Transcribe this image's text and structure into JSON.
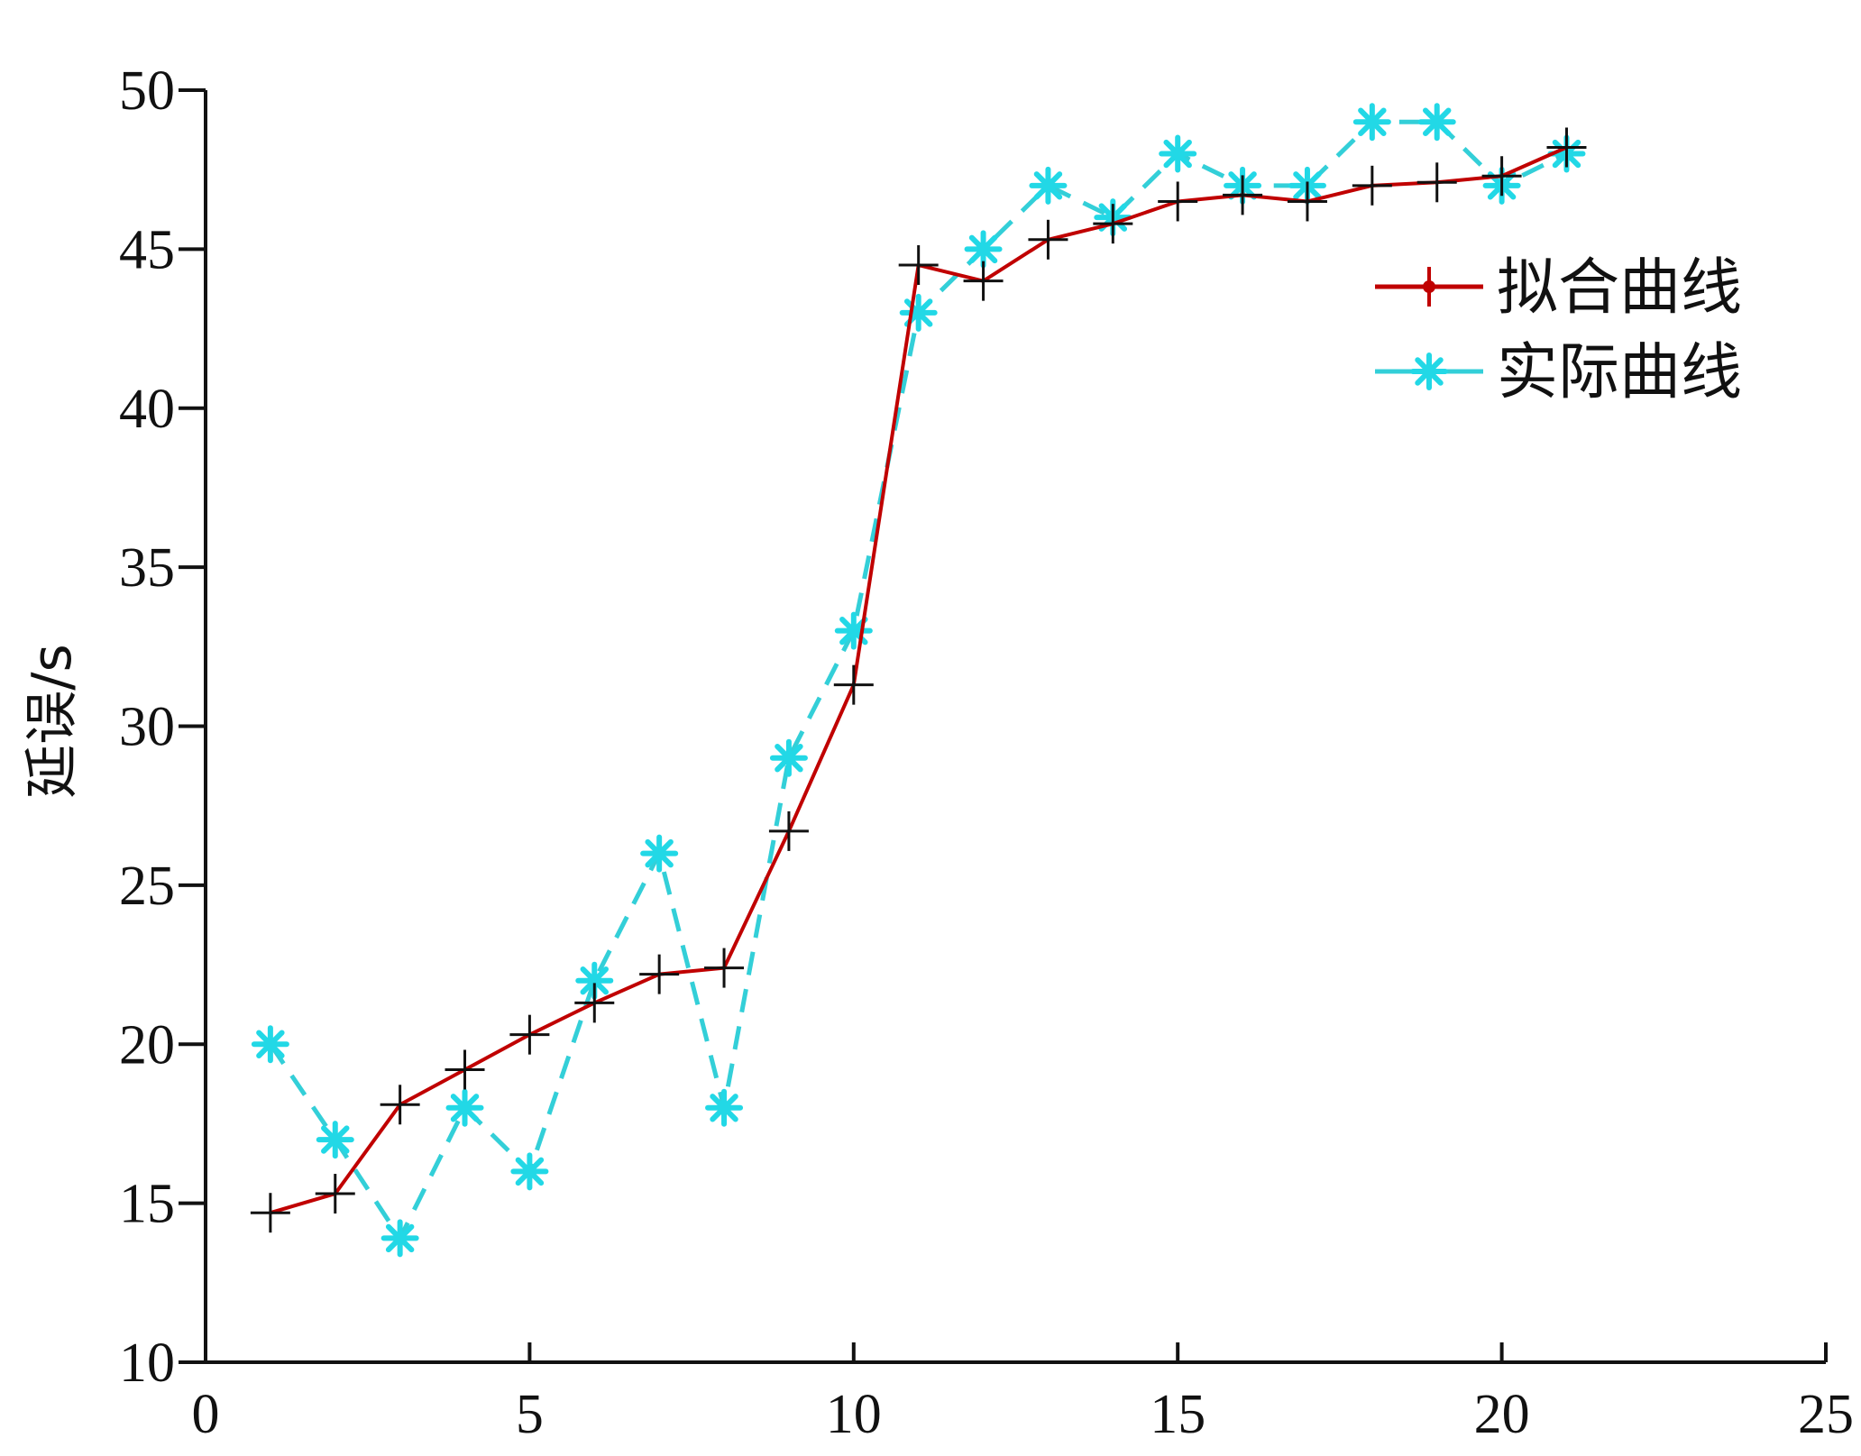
{
  "chart_data": {
    "type": "line",
    "ylabel": "延误/s",
    "xlim": [
      0,
      25
    ],
    "ylim": [
      10,
      50
    ],
    "xticks": [
      0,
      5,
      10,
      15,
      20,
      25
    ],
    "yticks": [
      10,
      15,
      20,
      25,
      30,
      35,
      40,
      45,
      50
    ],
    "x": [
      1,
      2,
      3,
      4,
      5,
      6,
      7,
      8,
      9,
      10,
      11,
      12,
      13,
      14,
      15,
      16,
      17,
      18,
      19,
      20,
      21
    ],
    "grid": false,
    "legend_position": "top-right",
    "series": [
      {
        "name": "拟合曲线",
        "color": "#c00000",
        "marker": "plus",
        "marker_color": "#111111",
        "line_style": "solid",
        "values": [
          14.7,
          15.3,
          18.1,
          19.2,
          20.3,
          21.3,
          22.2,
          22.4,
          26.7,
          31.3,
          44.5,
          44.0,
          45.3,
          45.8,
          46.5,
          46.7,
          46.5,
          47.0,
          47.1,
          47.3,
          48.2
        ]
      },
      {
        "name": "实际曲线",
        "color": "#33cfd8",
        "marker": "asterisk",
        "marker_color": "#22d8e6",
        "line_style": "dashed",
        "values": [
          20.0,
          17.0,
          13.9,
          18.0,
          16.0,
          22.0,
          26.0,
          18.0,
          29.0,
          33.0,
          43.0,
          45.0,
          47.0,
          46.0,
          48.0,
          47.0,
          47.0,
          49.0,
          49.0,
          47.0,
          48.0
        ]
      }
    ]
  }
}
